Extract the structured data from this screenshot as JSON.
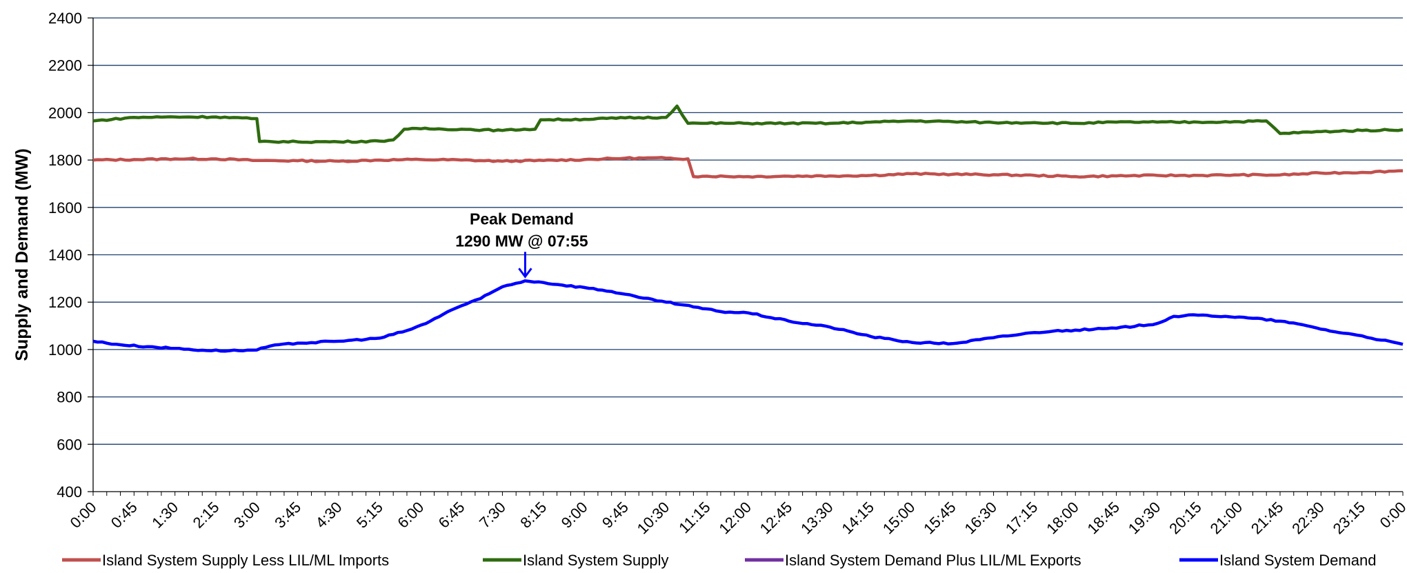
{
  "chart_data": {
    "type": "line",
    "ylabel": "Supply and Demand (MW)",
    "ylim": [
      400,
      2400
    ],
    "yticks": [
      400,
      600,
      800,
      1000,
      1200,
      1400,
      1600,
      1800,
      2000,
      2200,
      2400
    ],
    "xticks": [
      "0:00",
      "0:45",
      "1:30",
      "2:15",
      "3:00",
      "3:45",
      "4:30",
      "5:15",
      "6:00",
      "6:45",
      "7:30",
      "8:15",
      "9:00",
      "9:45",
      "10:30",
      "11:15",
      "12:00",
      "12:45",
      "13:30",
      "14:15",
      "15:00",
      "15:45",
      "16:30",
      "17:15",
      "18:00",
      "18:45",
      "19:30",
      "20:15",
      "21:00",
      "21:45",
      "22:30",
      "23:15",
      "0:00"
    ],
    "grid": "horizontal",
    "legend_position": "bottom",
    "annotation": {
      "line1": "Peak Demand",
      "line2": "1290 MW @ 07:55",
      "x_hours": 7.917,
      "y": 1290
    },
    "x_unit": "hours",
    "series": [
      {
        "name": "Island System Supply Less LIL/ML Imports",
        "color": "#c0504d",
        "points": [
          [
            0,
            1800
          ],
          [
            0.75,
            1802
          ],
          [
            1.5,
            1805
          ],
          [
            2.25,
            1805
          ],
          [
            3,
            1798
          ],
          [
            3.75,
            1797
          ],
          [
            4.5,
            1795
          ],
          [
            5.25,
            1800
          ],
          [
            6,
            1802
          ],
          [
            6.75,
            1800
          ],
          [
            7.5,
            1795
          ],
          [
            8.25,
            1798
          ],
          [
            9,
            1802
          ],
          [
            9.75,
            1808
          ],
          [
            10.5,
            1808
          ],
          [
            10.9,
            1805
          ],
          [
            11.0,
            1730
          ],
          [
            11.25,
            1732
          ],
          [
            12,
            1730
          ],
          [
            12.75,
            1732
          ],
          [
            13.5,
            1733
          ],
          [
            14.25,
            1735
          ],
          [
            15,
            1742
          ],
          [
            15.75,
            1740
          ],
          [
            16.5,
            1738
          ],
          [
            17.25,
            1735
          ],
          [
            18,
            1730
          ],
          [
            18.75,
            1733
          ],
          [
            19.5,
            1735
          ],
          [
            20.25,
            1735
          ],
          [
            21,
            1737
          ],
          [
            21.75,
            1737
          ],
          [
            22.5,
            1745
          ],
          [
            23.25,
            1748
          ],
          [
            24,
            1755
          ]
        ]
      },
      {
        "name": "Island System Supply",
        "color": "#2e6b0f",
        "points": [
          [
            0,
            1965
          ],
          [
            0.75,
            1980
          ],
          [
            1.5,
            1982
          ],
          [
            2.25,
            1982
          ],
          [
            2.9,
            1975
          ],
          [
            3.0,
            1975
          ],
          [
            3.05,
            1878
          ],
          [
            3.75,
            1877
          ],
          [
            4.5,
            1877
          ],
          [
            5.25,
            1880
          ],
          [
            5.5,
            1885
          ],
          [
            5.7,
            1930
          ],
          [
            6,
            1932
          ],
          [
            6.75,
            1930
          ],
          [
            7.5,
            1925
          ],
          [
            7.9,
            1930
          ],
          [
            8.1,
            1930
          ],
          [
            8.2,
            1970
          ],
          [
            9,
            1972
          ],
          [
            9.75,
            1978
          ],
          [
            10.5,
            1980
          ],
          [
            10.7,
            2028
          ],
          [
            10.9,
            1955
          ],
          [
            11.25,
            1955
          ],
          [
            12,
            1955
          ],
          [
            12.75,
            1955
          ],
          [
            13.5,
            1955
          ],
          [
            14.25,
            1960
          ],
          [
            15,
            1965
          ],
          [
            15.75,
            1962
          ],
          [
            16.5,
            1958
          ],
          [
            17.25,
            1958
          ],
          [
            18,
            1955
          ],
          [
            18.75,
            1960
          ],
          [
            19.5,
            1960
          ],
          [
            20.25,
            1960
          ],
          [
            21,
            1962
          ],
          [
            21.5,
            1965
          ],
          [
            21.75,
            1912
          ],
          [
            22.5,
            1920
          ],
          [
            23.25,
            1925
          ],
          [
            24,
            1928
          ]
        ]
      },
      {
        "name": "Island System Demand Plus LIL/ML Exports",
        "color": "#7030a0",
        "points": []
      },
      {
        "name": "Island System Demand",
        "color": "#0000ff",
        "points": [
          [
            0,
            1035
          ],
          [
            0.5,
            1020
          ],
          [
            1,
            1012
          ],
          [
            1.5,
            1005
          ],
          [
            2,
            997
          ],
          [
            2.5,
            995
          ],
          [
            3,
            998
          ],
          [
            3.25,
            1015
          ],
          [
            3.75,
            1027
          ],
          [
            4.5,
            1035
          ],
          [
            5.25,
            1048
          ],
          [
            5.75,
            1080
          ],
          [
            6.1,
            1110
          ],
          [
            6.5,
            1160
          ],
          [
            6.75,
            1185
          ],
          [
            7.1,
            1215
          ],
          [
            7.5,
            1265
          ],
          [
            7.917,
            1290
          ],
          [
            8.25,
            1283
          ],
          [
            8.6,
            1272
          ],
          [
            9,
            1262
          ],
          [
            9.5,
            1245
          ],
          [
            10,
            1220
          ],
          [
            10.5,
            1200
          ],
          [
            11,
            1180
          ],
          [
            11.5,
            1160
          ],
          [
            12,
            1155
          ],
          [
            12.75,
            1120
          ],
          [
            13.5,
            1095
          ],
          [
            14.25,
            1055
          ],
          [
            15,
            1030
          ],
          [
            15.75,
            1025
          ],
          [
            16.5,
            1050
          ],
          [
            17.25,
            1072
          ],
          [
            17.6,
            1078
          ],
          [
            18,
            1082
          ],
          [
            18.75,
            1090
          ],
          [
            19.5,
            1110
          ],
          [
            19.8,
            1140
          ],
          [
            20.25,
            1145
          ],
          [
            20.75,
            1140
          ],
          [
            21.25,
            1132
          ],
          [
            21.75,
            1120
          ],
          [
            22.25,
            1100
          ],
          [
            22.75,
            1075
          ],
          [
            23.25,
            1058
          ],
          [
            23.6,
            1040
          ],
          [
            24,
            1022
          ]
        ]
      }
    ]
  }
}
